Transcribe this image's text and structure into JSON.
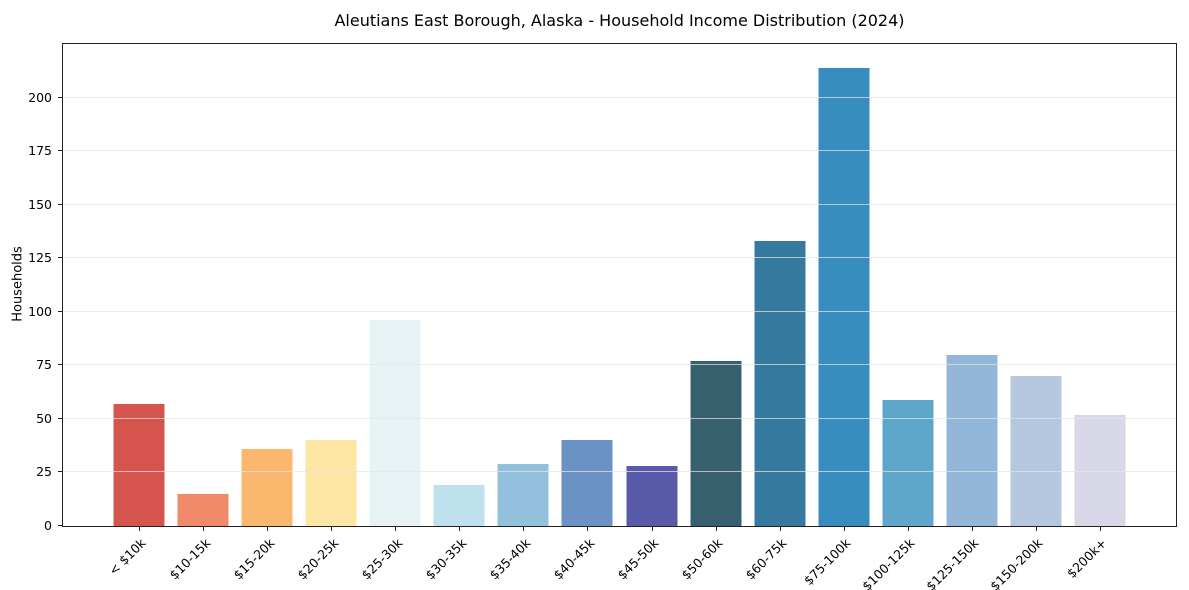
{
  "chart_data": {
    "type": "bar",
    "title": "Aleutians East Borough, Alaska - Household Income Distribution (2024)",
    "xlabel": "",
    "ylabel": "Households",
    "categories": [
      "< $10k",
      "$10-15k",
      "$15-20k",
      "$20-25k",
      "$25-30k",
      "$30-35k",
      "$35-40k",
      "$40-45k",
      "$45-50k",
      "$50-60k",
      "$60-75k",
      "$75-100k",
      "$100-125k",
      "$125-150k",
      "$150-200k",
      "$200k+"
    ],
    "values": [
      57,
      15,
      36,
      40,
      96,
      19,
      29,
      40,
      28,
      77,
      133,
      214,
      59,
      80,
      70,
      52
    ],
    "bar_colors": [
      "#d6544e",
      "#f08a68",
      "#fab76e",
      "#fde6a4",
      "#e7f2f5",
      "#bfe0ed",
      "#92c0dd",
      "#6b92c4",
      "#5a5aaa",
      "#37616f",
      "#357a9e",
      "#378dc0",
      "#5fa6cb",
      "#93b7d9",
      "#b5c7de",
      "#d8d7e8"
    ],
    "ylim": [
      0,
      225
    ],
    "yticks": [
      0,
      25,
      50,
      75,
      100,
      125,
      150,
      175,
      200
    ],
    "grid": "horizontal",
    "grid_over_bars": true,
    "legend": "none",
    "axis_color": "#222222",
    "gridline_color": "#e4e4e4",
    "background": "#ffffff",
    "bar_width_fraction": 0.8
  }
}
